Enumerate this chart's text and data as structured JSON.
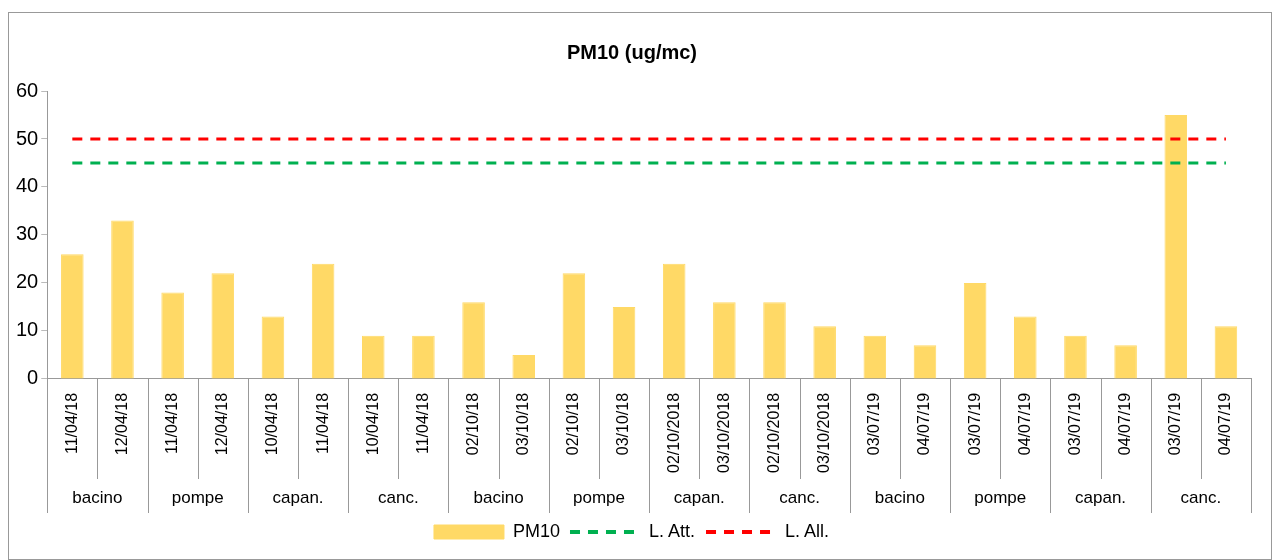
{
  "chart_data": {
    "type": "bar",
    "title": "PM10 (ug/mc)",
    "categories": [
      "11/04/18",
      "12/04/18",
      "11/04/18",
      "12/04/18",
      "10/04/18",
      "11/04/18",
      "10/04/18",
      "11/04/18",
      "02/10/18",
      "03/10/18",
      "02/10/18",
      "03/10/18",
      "02/10/2018",
      "03/10/2018",
      "02/10/2018",
      "03/10/2018",
      "03/07/19",
      "04/07/19",
      "03/07/19",
      "04/07/19",
      "03/07/19",
      "04/07/19",
      "03/07/19",
      "04/07/19"
    ],
    "series": [
      {
        "name": "PM10",
        "color": "#ffd966",
        "values": [
          26,
          33,
          18,
          22,
          13,
          24,
          9,
          9,
          16,
          5,
          22,
          15,
          24,
          16,
          16,
          11,
          9,
          7,
          20,
          13,
          9,
          7,
          55,
          11
        ]
      },
      {
        "name": "L. Att.",
        "type": "line",
        "color": "#00b050",
        "line_style": "dashed",
        "values": [
          45,
          45,
          45,
          45,
          45,
          45,
          45,
          45,
          45,
          45,
          45,
          45,
          45,
          45,
          45,
          45,
          45,
          45,
          45,
          45,
          45,
          45,
          45,
          45
        ]
      },
      {
        "name": "L. All.",
        "type": "line",
        "color": "#ff0000",
        "line_style": "dashed",
        "values": [
          50,
          50,
          50,
          50,
          50,
          50,
          50,
          50,
          50,
          50,
          50,
          50,
          50,
          50,
          50,
          50,
          50,
          50,
          50,
          50,
          50,
          50,
          50,
          50
        ]
      }
    ],
    "annotations": [
      "bacino",
      "pompe",
      "capan.",
      "canc.",
      "bacino",
      "pompe",
      "capan.",
      "canc.",
      "bacino",
      "pompe",
      "capan.",
      "canc."
    ],
    "ylim": [
      0,
      60
    ],
    "yticks": [
      0,
      10,
      20,
      30,
      40,
      50,
      60
    ],
    "grid": false,
    "legend": "bottom",
    "marker": "none"
  }
}
